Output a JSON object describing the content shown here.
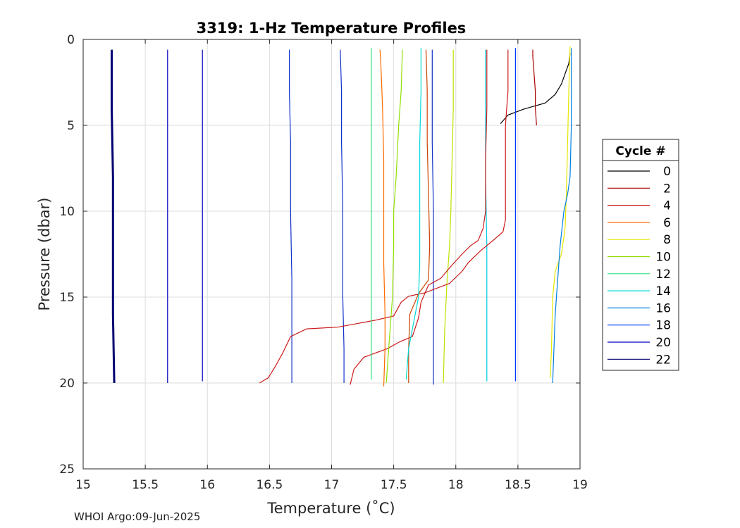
{
  "chart_data": {
    "type": "line",
    "title": "3319: 1-Hz Temperature Profiles",
    "xlabel": "Temperature (˚C)",
    "ylabel": "Pressure (dbar)",
    "xlim": [
      15,
      19
    ],
    "ylim": [
      0,
      25
    ],
    "y_reversed": true,
    "xticks": [
      15,
      15.5,
      16,
      16.5,
      17,
      17.5,
      18,
      18.5,
      19
    ],
    "xtick_labels": [
      "15",
      "15.5",
      "16",
      "16.5",
      "17",
      "17.5",
      "18",
      "18.5",
      "19"
    ],
    "yticks": [
      0,
      5,
      10,
      15,
      20,
      25
    ],
    "ytick_labels": [
      "0",
      "5",
      "10",
      "15",
      "20",
      "25"
    ],
    "grid": true,
    "legend_title": "Cycle #",
    "legend_position": "outside-right",
    "series": [
      {
        "name": "0",
        "color": "#000000",
        "points": [
          [
            18.36,
            4.9
          ],
          [
            18.42,
            4.4
          ],
          [
            18.55,
            4.05
          ],
          [
            18.72,
            3.7
          ],
          [
            18.8,
            3.2
          ],
          [
            18.85,
            2.6
          ],
          [
            18.88,
            2.0
          ],
          [
            18.91,
            1.4
          ],
          [
            18.92,
            0.8
          ]
        ]
      },
      {
        "name": "2",
        "color": "#a80000",
        "points": [
          [
            18.65,
            5.0
          ],
          [
            18.64,
            4.0
          ],
          [
            18.64,
            3.0
          ],
          [
            18.63,
            2.0
          ],
          [
            18.62,
            1.0
          ],
          [
            18.62,
            0.6
          ]
        ]
      },
      {
        "name": "4",
        "color": "#cc1a1a",
        "points": [
          [
            16.42,
            20.0
          ],
          [
            16.49,
            19.7
          ],
          [
            16.55,
            19.0
          ],
          [
            16.61,
            18.2
          ],
          [
            16.67,
            17.3
          ],
          [
            16.8,
            16.85
          ],
          [
            17.05,
            16.75
          ],
          [
            17.2,
            16.55
          ],
          [
            17.35,
            16.35
          ],
          [
            17.5,
            16.1
          ],
          [
            17.56,
            15.3
          ],
          [
            17.62,
            14.95
          ],
          [
            17.75,
            14.75
          ],
          [
            17.95,
            14.2
          ],
          [
            18.05,
            13.5
          ],
          [
            18.1,
            13.0
          ],
          [
            18.2,
            12.3
          ],
          [
            18.3,
            11.7
          ],
          [
            18.38,
            11.2
          ],
          [
            18.4,
            10.5
          ],
          [
            18.4,
            8.0
          ],
          [
            18.4,
            5.0
          ],
          [
            18.42,
            3.0
          ],
          [
            18.42,
            0.6
          ]
        ]
      },
      {
        "name": "6",
        "color": "#ff6a00",
        "points": [
          [
            17.42,
            20.2
          ],
          [
            17.43,
            18.0
          ],
          [
            17.43,
            16.0
          ],
          [
            17.42,
            13.0
          ],
          [
            17.42,
            10.0
          ],
          [
            17.42,
            7.0
          ],
          [
            17.41,
            4.0
          ],
          [
            17.4,
            2.0
          ],
          [
            17.39,
            0.6
          ]
        ]
      },
      {
        "name": "8",
        "color": "#e6e600",
        "points": [
          [
            18.76,
            19.7
          ],
          [
            18.77,
            18.0
          ],
          [
            18.78,
            15.0
          ],
          [
            18.8,
            13.5
          ],
          [
            18.85,
            12.5
          ],
          [
            18.88,
            11.0
          ],
          [
            18.89,
            9.0
          ],
          [
            18.9,
            6.0
          ],
          [
            18.91,
            3.0
          ],
          [
            18.92,
            0.4
          ]
        ]
      },
      {
        "name": "10",
        "color": "#90e000",
        "points": [
          [
            17.44,
            20.0
          ],
          [
            17.45,
            19.0
          ],
          [
            17.47,
            17.0
          ],
          [
            17.49,
            15.0
          ],
          [
            17.5,
            12.0
          ],
          [
            17.5,
            10.0
          ],
          [
            17.52,
            8.0
          ],
          [
            17.54,
            5.0
          ],
          [
            17.56,
            3.0
          ],
          [
            17.57,
            0.6
          ]
        ]
      },
      {
        "name": "12",
        "color": "#30e080",
        "points": [
          [
            17.32,
            19.8
          ],
          [
            17.32,
            16.0
          ],
          [
            17.32,
            12.0
          ],
          [
            17.32,
            8.0
          ],
          [
            17.32,
            4.0
          ],
          [
            17.32,
            0.5
          ]
        ]
      },
      {
        "name": "14",
        "color": "#00d8d8",
        "points": [
          [
            17.6,
            19.8
          ],
          [
            17.62,
            18.0
          ],
          [
            17.66,
            16.5
          ],
          [
            17.7,
            15.0
          ],
          [
            17.71,
            13.0
          ],
          [
            17.71,
            10.0
          ],
          [
            17.71,
            6.0
          ],
          [
            17.72,
            3.0
          ],
          [
            17.72,
            0.5
          ]
        ]
      },
      {
        "name": "16",
        "color": "#0080e0",
        "points": [
          [
            18.78,
            20.0
          ],
          [
            18.79,
            18.0
          ],
          [
            18.8,
            16.0
          ],
          [
            18.82,
            14.0
          ],
          [
            18.84,
            12.0
          ],
          [
            18.87,
            10.0
          ],
          [
            18.9,
            9.0
          ],
          [
            18.92,
            8.0
          ],
          [
            18.93,
            5.0
          ],
          [
            18.93,
            2.0
          ],
          [
            18.93,
            0.5
          ]
        ]
      },
      {
        "name": "18",
        "color": "#0038ff",
        "points": [
          [
            18.48,
            19.9
          ],
          [
            18.48,
            16.0
          ],
          [
            18.48,
            12.0
          ],
          [
            18.48,
            8.0
          ],
          [
            18.48,
            4.0
          ],
          [
            18.48,
            0.5
          ]
        ]
      },
      {
        "name": "20",
        "color": "#0000c0",
        "points": [
          [
            15.68,
            20.0
          ],
          [
            15.68,
            16.0
          ],
          [
            15.68,
            12.0
          ],
          [
            15.68,
            8.0
          ],
          [
            15.68,
            4.0
          ],
          [
            15.68,
            0.6
          ]
        ]
      },
      {
        "name": "22",
        "color": "#000070",
        "points": [
          [
            15.25,
            20.0
          ],
          [
            15.24,
            16.0
          ],
          [
            15.24,
            12.0
          ],
          [
            15.24,
            8.0
          ],
          [
            15.23,
            4.0
          ],
          [
            15.23,
            0.6
          ]
        ]
      }
    ],
    "unlabeled_profiles": [
      {
        "color": "#0000c0",
        "points": [
          [
            15.96,
            19.9
          ],
          [
            15.96,
            15.0
          ],
          [
            15.96,
            10.0
          ],
          [
            15.96,
            5.0
          ],
          [
            15.96,
            0.6
          ]
        ]
      },
      {
        "color": "#1030c8",
        "points": [
          [
            16.68,
            20.0
          ],
          [
            16.68,
            17.0
          ],
          [
            16.68,
            14.0
          ],
          [
            16.67,
            10.0
          ],
          [
            16.67,
            6.0
          ],
          [
            16.66,
            3.0
          ],
          [
            16.66,
            0.6
          ]
        ]
      },
      {
        "color": "#1030c8",
        "points": [
          [
            17.1,
            20.0
          ],
          [
            17.1,
            18.0
          ],
          [
            17.09,
            15.0
          ],
          [
            17.09,
            10.0
          ],
          [
            17.08,
            6.0
          ],
          [
            17.08,
            3.0
          ],
          [
            17.07,
            0.6
          ]
        ]
      },
      {
        "color": "#00c8e0",
        "points": [
          [
            18.25,
            19.9
          ],
          [
            18.25,
            16.0
          ],
          [
            18.25,
            12.0
          ],
          [
            18.24,
            8.0
          ],
          [
            18.24,
            4.0
          ],
          [
            18.24,
            0.6
          ]
        ]
      },
      {
        "color": "#c0e000",
        "points": [
          [
            17.9,
            20.0
          ],
          [
            17.91,
            17.0
          ],
          [
            17.93,
            14.0
          ],
          [
            17.95,
            12.0
          ],
          [
            17.96,
            10.0
          ],
          [
            17.97,
            7.0
          ],
          [
            17.98,
            4.0
          ],
          [
            17.98,
            0.6
          ]
        ]
      },
      {
        "color": "#1030c8",
        "points": [
          [
            17.82,
            20.1
          ],
          [
            17.82,
            17.0
          ],
          [
            17.82,
            14.0
          ],
          [
            17.82,
            10.0
          ],
          [
            17.81,
            6.0
          ],
          [
            17.81,
            3.0
          ],
          [
            17.81,
            0.6
          ]
        ]
      },
      {
        "color": "#cc1a1a",
        "points": [
          [
            17.15,
            20.1
          ],
          [
            17.18,
            19.2
          ],
          [
            17.26,
            18.5
          ],
          [
            17.45,
            18.0
          ],
          [
            17.55,
            17.6
          ],
          [
            17.65,
            17.3
          ],
          [
            17.7,
            16.2
          ],
          [
            17.72,
            15.3
          ],
          [
            17.78,
            14.3
          ],
          [
            17.88,
            13.9
          ],
          [
            17.95,
            13.3
          ],
          [
            18.05,
            12.5
          ],
          [
            18.12,
            12.0
          ],
          [
            18.18,
            11.7
          ],
          [
            18.22,
            11.0
          ],
          [
            18.24,
            10.0
          ],
          [
            18.24,
            7.0
          ],
          [
            18.25,
            4.0
          ],
          [
            18.25,
            0.6
          ]
        ]
      },
      {
        "color": "#cc4400",
        "points": [
          [
            17.62,
            20.0
          ],
          [
            17.62,
            18.0
          ],
          [
            17.63,
            16.0
          ],
          [
            17.7,
            14.8
          ],
          [
            17.78,
            14.0
          ],
          [
            17.79,
            12.0
          ],
          [
            17.78,
            9.0
          ],
          [
            17.77,
            6.0
          ],
          [
            17.77,
            3.0
          ],
          [
            17.76,
            0.6
          ]
        ]
      }
    ]
  },
  "footer": "WHOI Argo:09-Jun-2025"
}
